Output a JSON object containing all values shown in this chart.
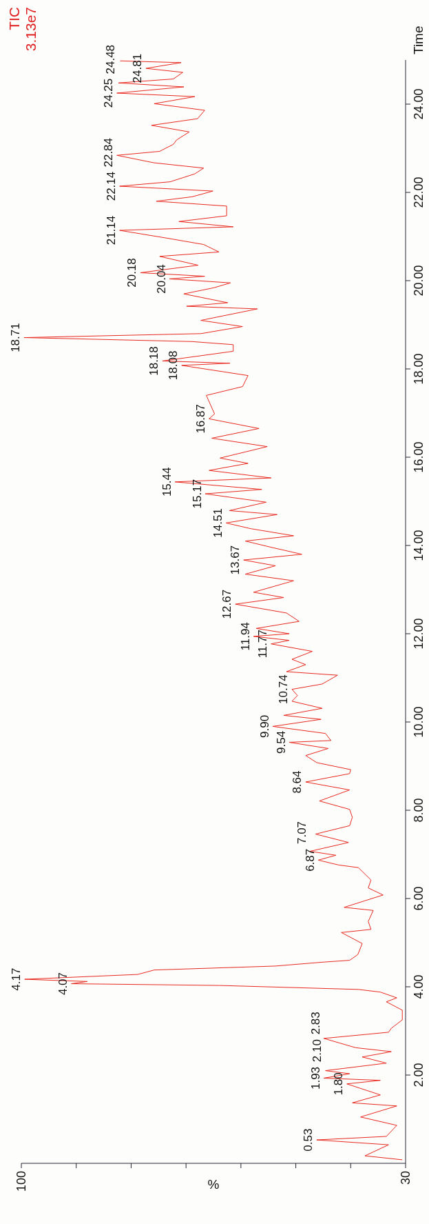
{
  "chart_data": {
    "type": "line",
    "title": "TIC",
    "xlabel": "%",
    "ylabel": "Time",
    "annotations": [
      "3.13e7",
      {
        "text": "0.53",
        "y": 0.53,
        "x": 46.2
      },
      {
        "text": "1.80",
        "y": 1.8,
        "x": 40.7
      },
      {
        "text": "1.93",
        "y": 1.93,
        "x": 44.9
      },
      {
        "text": "2.10",
        "y": 2.1,
        "x": 44.6
      },
      {
        "text": "2.83",
        "y": 2.83,
        "x": 44.9
      },
      {
        "text": "4.07",
        "y": 4.07,
        "x": 90.9
      },
      {
        "text": "4.17",
        "y": 4.17,
        "x": 99.4
      },
      {
        "text": "6.87",
        "y": 6.87,
        "x": 45.9
      },
      {
        "text": "7.07",
        "y": 7.07,
        "x": 47.4
      },
      {
        "text": "8.64",
        "y": 8.64,
        "x": 48.2
      },
      {
        "text": "9.54",
        "y": 9.54,
        "x": 51.2
      },
      {
        "text": "9.90",
        "y": 9.9,
        "x": 54.2
      },
      {
        "text": "10.74",
        "y": 10.74,
        "x": 50.7
      },
      {
        "text": "11.77",
        "y": 11.77,
        "x": 54.5
      },
      {
        "text": "11.94",
        "y": 11.94,
        "x": 57.7
      },
      {
        "text": "12.67",
        "y": 12.67,
        "x": 61
      },
      {
        "text": "13.67",
        "y": 13.67,
        "x": 59.5
      },
      {
        "text": "14.51",
        "y": 14.51,
        "x": 62.7
      },
      {
        "text": "15.17",
        "y": 15.17,
        "x": 66.5
      },
      {
        "text": "15.44",
        "y": 15.44,
        "x": 72
      },
      {
        "text": "16.87",
        "y": 16.87,
        "x": 65.8
      },
      {
        "text": "18.08",
        "y": 18.08,
        "x": 70.8
      },
      {
        "text": "18.18",
        "y": 18.18,
        "x": 74.3
      },
      {
        "text": "18.71",
        "y": 18.71,
        "x": 99.5
      },
      {
        "text": "20.04",
        "y": 20.04,
        "x": 73
      },
      {
        "text": "20.18",
        "y": 20.18,
        "x": 78.3
      },
      {
        "text": "21.14",
        "y": 21.14,
        "x": 82.1
      },
      {
        "text": "22.14",
        "y": 22.14,
        "x": 82.1
      },
      {
        "text": "22.84",
        "y": 22.84,
        "x": 82.6
      },
      {
        "text": "24.25",
        "y": 24.25,
        "x": 82.6
      },
      {
        "text": "24.48",
        "y": 24.48,
        "x": 82.3
      },
      {
        "text": "24.81",
        "y": 24.81,
        "x": 77.3
      }
    ],
    "series": [
      {
        "color": "#e8281e",
        "values": [
          0.08,
          0.17,
          0.42,
          0.53,
          0.61,
          0.86,
          1.05,
          1.3,
          1.37,
          1.55,
          1.8,
          1.88,
          1.93,
          2.03,
          2.1,
          2.27,
          2.41,
          2.53,
          2.62,
          2.83,
          2.97,
          3.06,
          3.25,
          3.47,
          3.66,
          3.75,
          3.88,
          3.94,
          4.03,
          4.07,
          4.12,
          4.17,
          4.28,
          4.38,
          4.47,
          4.56,
          4.6,
          4.73,
          4.98,
          5.23,
          5.3,
          5.48,
          5.73,
          5.8,
          6.08,
          6.24,
          6.42,
          6.7,
          6.76,
          6.87,
          6.98,
          7.07,
          7.27,
          7.46,
          7.65,
          7.84,
          8.02,
          8.21,
          8.46,
          8.64,
          8.83,
          8.92,
          9.08,
          9.24,
          9.4,
          9.54,
          9.58,
          9.74,
          9.9,
          10.06,
          10.15,
          10.31,
          10.47,
          10.6,
          10.74,
          10.86,
          11.06,
          11.14,
          11.3,
          11.42,
          11.6,
          11.77,
          11.85,
          11.94,
          12.0,
          12.12,
          12.28,
          12.47,
          12.67,
          12.82,
          12.94,
          13.2,
          13.35,
          13.54,
          13.67,
          13.8,
          13.95,
          14.1,
          14.22,
          14.38,
          14.51,
          14.7,
          14.79,
          14.98,
          15.17,
          15.27,
          15.44,
          15.53,
          15.7,
          15.86,
          15.98,
          16.24,
          16.43,
          16.65,
          16.87,
          16.98,
          17.4,
          17.6,
          17.85,
          18.08,
          18.13,
          18.18,
          18.4,
          18.55,
          18.62,
          18.71,
          18.8,
          18.96,
          19.1,
          19.36,
          19.42,
          19.5,
          19.7,
          19.84,
          19.95,
          20.04,
          20.1,
          20.18,
          20.35,
          20.55,
          20.65,
          20.82,
          20.97,
          21.14,
          21.22,
          21.34,
          21.47,
          21.69,
          21.8,
          21.9,
          22.03,
          22.14,
          22.24,
          22.42,
          22.55,
          22.67,
          22.84,
          22.93,
          23.09,
          23.19,
          23.37,
          23.52,
          23.67,
          23.86,
          24.01,
          24.17,
          24.25,
          24.39,
          24.48,
          24.57,
          24.72,
          24.81,
          24.94,
          24.98
        ],
        "x": [
          30.6,
          37.4,
          33.1,
          46.2,
          33.5,
          31.6,
          38.2,
          31.6,
          39.7,
          34.6,
          40.7,
          34.6,
          44.9,
          40.2,
          44.6,
          33.5,
          37.9,
          32.6,
          39.1,
          44.9,
          33.1,
          32.6,
          30.6,
          30.6,
          33.5,
          31.6,
          34.6,
          38.6,
          63.8,
          90.9,
          88,
          99.4,
          78.8,
          75.8,
          53.7,
          44.9,
          40.2,
          38.7,
          37.9,
          41.7,
          36.3,
          36.8,
          35.9,
          41.2,
          34.1,
          36.8,
          36.3,
          38.6,
          42.2,
          45.9,
          42.7,
          47.4,
          40.4,
          46.4,
          40.2,
          39.7,
          40.2,
          45.7,
          40.2,
          48.2,
          40.2,
          40,
          46.2,
          48.2,
          44.1,
          51.2,
          43.6,
          44.6,
          54.2,
          45.4,
          52.2,
          45.2,
          50.7,
          49.7,
          50.7,
          45.2,
          42.4,
          51.7,
          48.2,
          50.7,
          47,
          54.5,
          51.2,
          57.7,
          51.2,
          57.2,
          49.4,
          51.7,
          61,
          52.2,
          57.7,
          50.4,
          59.2,
          53.7,
          59.5,
          48.9,
          54.2,
          59.2,
          50.4,
          58.2,
          62.7,
          53.4,
          62.1,
          55.4,
          66.5,
          56.2,
          72,
          54.5,
          65.8,
          58.7,
          63.8,
          55.2,
          65.3,
          56.7,
          65.8,
          64.8,
          66.3,
          59.7,
          58.7,
          70.8,
          62,
          74.3,
          61.4,
          61.4,
          68.9,
          99.5,
          67.3,
          59.7,
          67.3,
          57,
          69.9,
          62.4,
          70.4,
          64.9,
          61.9,
          73,
          66.6,
          78.3,
          67.8,
          74.8,
          64,
          66.8,
          73.8,
          82.1,
          61.4,
          71.3,
          62.6,
          62.6,
          75.4,
          68.9,
          65.1,
          82.1,
          72.9,
          68.4,
          66.8,
          75.8,
          82.6,
          74.8,
          72.3,
          71.7,
          69.4,
          76.3,
          67.9,
          66.6,
          75.8,
          68.4,
          82.6,
          70.4,
          82.3,
          72.3,
          70.6,
          77.3,
          70.9,
          82
        ]
      }
    ],
    "ylim": [
      0,
      25
    ],
    "yticks": [
      {
        "value": 2,
        "label": "2.00"
      },
      {
        "value": 4,
        "label": "4.00"
      },
      {
        "value": 6,
        "label": "6.00"
      },
      {
        "value": 8,
        "label": "8.00"
      },
      {
        "value": 10,
        "label": "10.00"
      },
      {
        "value": 12,
        "label": "12.00"
      },
      {
        "value": 14,
        "label": "14.00"
      },
      {
        "value": 16,
        "label": "16.00"
      },
      {
        "value": 18,
        "label": "18.00"
      },
      {
        "value": 20,
        "label": "20.00"
      },
      {
        "value": 22,
        "label": "22.00"
      },
      {
        "value": 24,
        "label": "24.00"
      }
    ],
    "xlim": [
      100,
      30
    ],
    "xticks": [
      100,
      {
        "value": 90,
        "label": null
      },
      {
        "value": 80,
        "label": null
      },
      {
        "value": 70,
        "label": null
      },
      {
        "value": 60,
        "label": null
      },
      {
        "value": 50,
        "label": null
      },
      {
        "value": 40,
        "label": null
      },
      30
    ],
    "grid": false,
    "legend": false,
    "marker": "none",
    "line_style": "solid"
  }
}
